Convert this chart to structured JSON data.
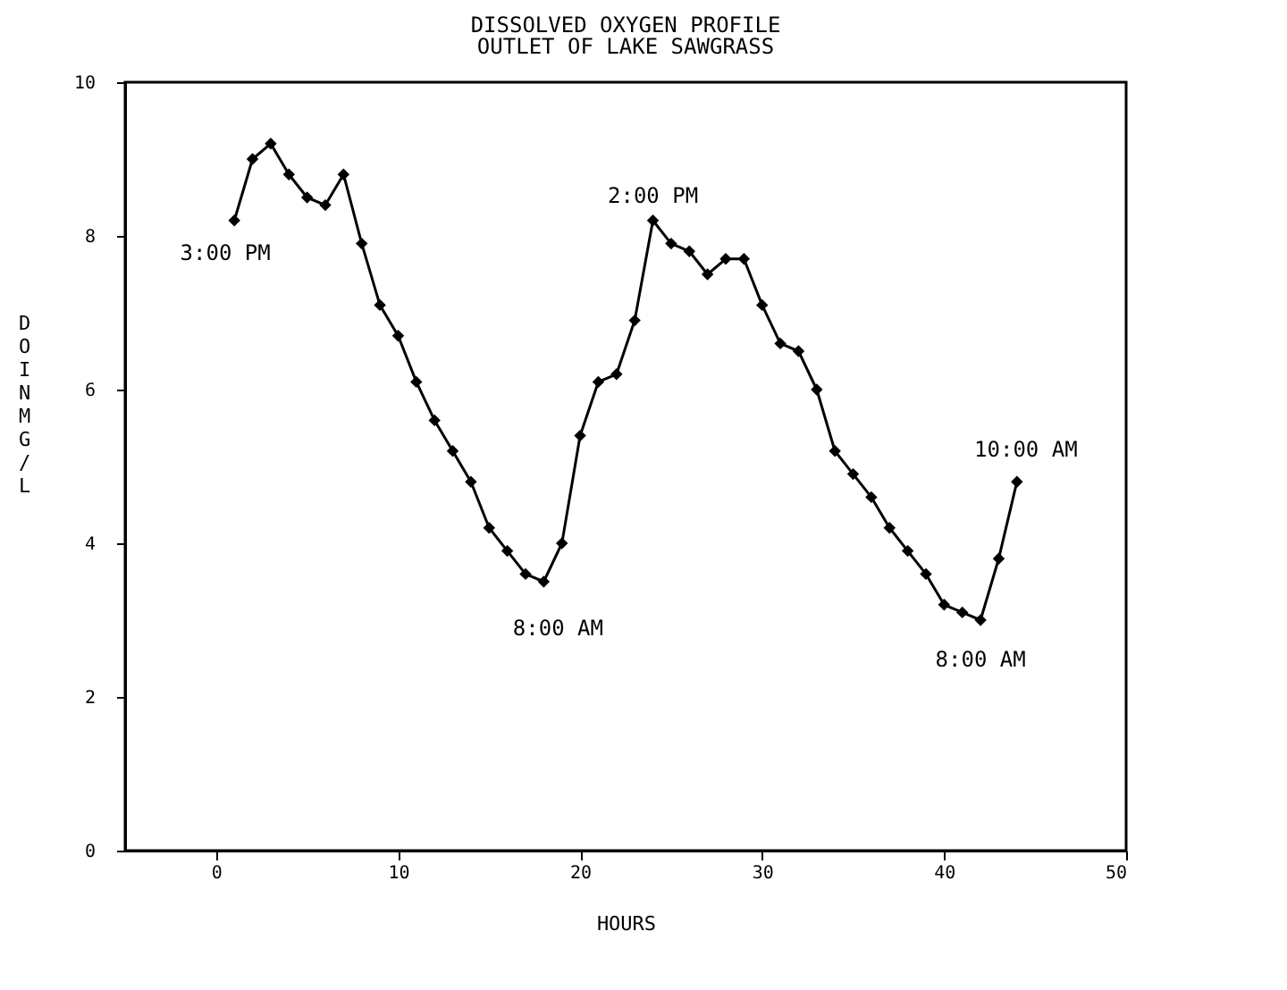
{
  "chart_data": {
    "type": "line",
    "title": "DISSOLVED OXYGEN PROFILE",
    "subtitle": "OUTLET OF LAKE SAWGRASS",
    "xlabel": "HOURS",
    "ylabel": "DO IN MG/L",
    "x": [
      1,
      2,
      3,
      4,
      5,
      6,
      7,
      8,
      9,
      10,
      11,
      12,
      13,
      14,
      15,
      16,
      17,
      18,
      19,
      20,
      21,
      22,
      23,
      24,
      25,
      26,
      27,
      28,
      29,
      30,
      31,
      32,
      33,
      34,
      35,
      36,
      37,
      38,
      39,
      40,
      41,
      42,
      43,
      44
    ],
    "series": [
      {
        "color": "#000000",
        "values": [
          8.2,
          9.0,
          9.2,
          8.8,
          8.5,
          8.4,
          8.8,
          7.9,
          7.1,
          6.7,
          6.1,
          5.6,
          5.2,
          4.8,
          4.2,
          3.9,
          3.6,
          3.5,
          4.0,
          5.4,
          6.1,
          6.2,
          6.9,
          8.2,
          7.9,
          7.8,
          7.5,
          7.7,
          7.7,
          7.1,
          6.6,
          6.5,
          6.0,
          5.2,
          4.9,
          4.6,
          4.2,
          3.9,
          3.6,
          3.2,
          3.1,
          3.0,
          3.8,
          4.8
        ]
      }
    ],
    "xlim": [
      -5,
      50
    ],
    "xticks": [
      0,
      10,
      20,
      30,
      40,
      50
    ],
    "ylim": [
      0,
      10
    ],
    "yticks": [
      0,
      2,
      4,
      6,
      8,
      10
    ],
    "grid": false,
    "marker": "diamond",
    "line_style": "solid",
    "annotations": [
      {
        "text": "3:00 PM",
        "x": 1,
        "y": 8.2
      },
      {
        "text": "8:00 AM",
        "x": 18,
        "y": 3.5
      },
      {
        "text": "2:00 PM",
        "x": 24,
        "y": 8.2
      },
      {
        "text": "8:00 AM",
        "x": 42,
        "y": 3.0
      },
      {
        "text": "10:00 AM",
        "x": 44,
        "y": 4.8
      }
    ]
  }
}
